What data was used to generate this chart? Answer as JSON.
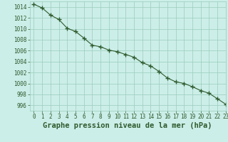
{
  "x": [
    0,
    1,
    2,
    3,
    4,
    5,
    6,
    7,
    8,
    9,
    10,
    11,
    12,
    13,
    14,
    15,
    16,
    17,
    18,
    19,
    20,
    21,
    22,
    23
  ],
  "y": [
    1014.5,
    1013.8,
    1012.5,
    1011.7,
    1010.1,
    1009.5,
    1008.3,
    1007.0,
    1006.7,
    1006.1,
    1005.8,
    1005.3,
    1004.8,
    1003.8,
    1003.2,
    1002.2,
    1001.0,
    1000.3,
    1000.0,
    999.4,
    998.7,
    998.2,
    997.2,
    996.2
  ],
  "line_color": "#2d5a2d",
  "marker": "+",
  "marker_size": 4,
  "marker_linewidth": 1.0,
  "bg_color": "#cceee8",
  "grid_color": "#99ccbb",
  "grid_color_minor": "#bbddcc",
  "xlabel": "Graphe pression niveau de la mer (hPa)",
  "xlabel_color": "#2d5a2d",
  "ylim": [
    995,
    1015
  ],
  "xlim": [
    -0.5,
    23
  ],
  "yticks": [
    996,
    998,
    1000,
    1002,
    1004,
    1006,
    1008,
    1010,
    1012,
    1014
  ],
  "xticks": [
    0,
    1,
    2,
    3,
    4,
    5,
    6,
    7,
    8,
    9,
    10,
    11,
    12,
    13,
    14,
    15,
    16,
    17,
    18,
    19,
    20,
    21,
    22,
    23
  ],
  "tick_color": "#2d5a2d",
  "tick_fontsize": 5.5,
  "xlabel_fontsize": 7.5,
  "label_fontweight": "bold",
  "line_width": 0.8
}
